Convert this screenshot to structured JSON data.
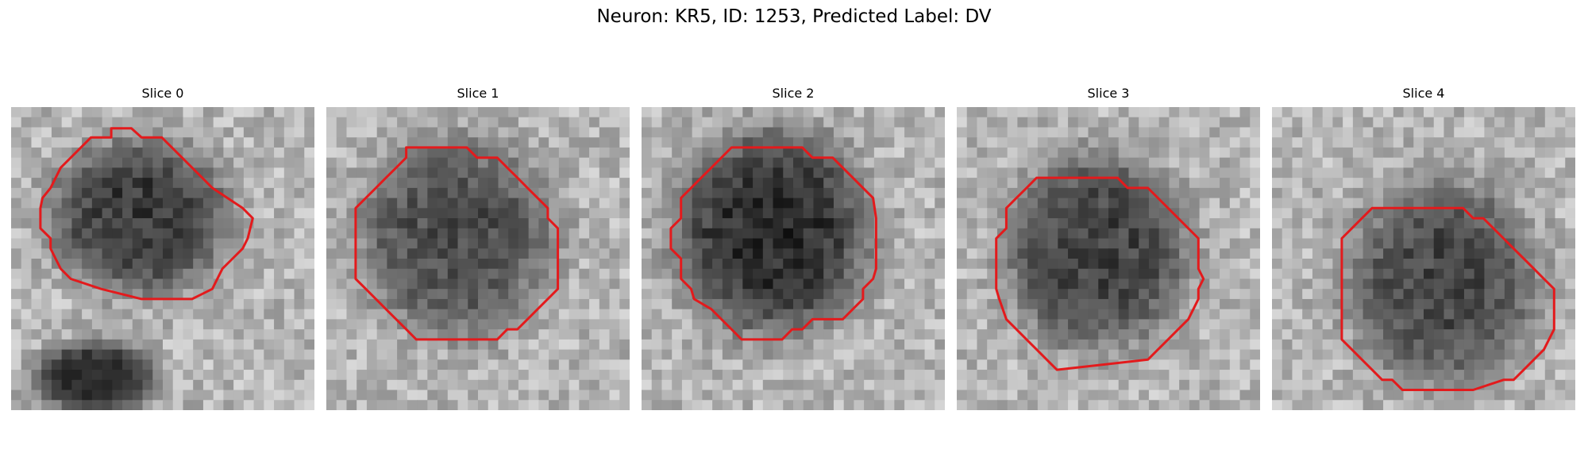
{
  "figure": {
    "title": "Neuron: KR5, ID: 1253, Predicted Label: DV"
  },
  "panels": [
    {
      "label": "Slice 0"
    },
    {
      "label": "Slice 1"
    },
    {
      "label": "Slice 2"
    },
    {
      "label": "Slice 3"
    },
    {
      "label": "Slice 4"
    }
  ],
  "colors": {
    "contour": "#e31a1c",
    "background": "#ffffff"
  }
}
